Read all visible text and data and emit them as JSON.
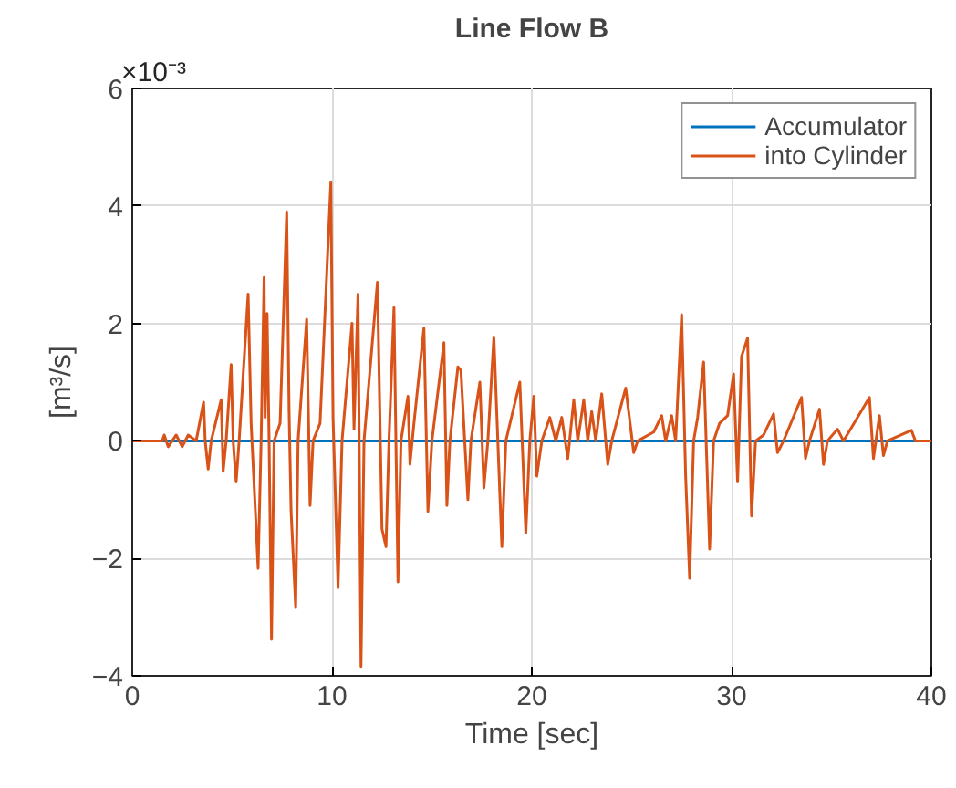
{
  "chart_data": {
    "type": "line",
    "title": "Line Flow B",
    "xlabel": "Time [sec]",
    "ylabel": "[m³/s]",
    "annotations": [
      "×10⁻³"
    ],
    "xlim": [
      0,
      40
    ],
    "xticks": [
      0,
      10,
      20,
      30,
      40
    ],
    "ylim": [
      -4,
      6
    ],
    "yticks": [
      -4,
      -2,
      0,
      2,
      4,
      6
    ],
    "grid": true,
    "legend": "top right",
    "line_style": "solid",
    "series": [
      {
        "name": "Accumulator",
        "color": "#0072bd",
        "x": [
          0,
          40
        ],
        "values": [
          0,
          0
        ]
      },
      {
        "name": "into Cylinder",
        "color": "#d95319",
        "x": [
          0,
          1.5,
          1.6,
          1.8,
          2.2,
          2.5,
          2.8,
          3.2,
          3.57,
          3.65,
          3.8,
          3.95,
          4.45,
          4.55,
          4.7,
          4.95,
          5.05,
          5.2,
          5.35,
          5.8,
          5.95,
          6.3,
          6.45,
          6.6,
          6.65,
          6.75,
          6.85,
          6.97,
          7.1,
          7.4,
          7.73,
          7.85,
          7.95,
          8.18,
          8.3,
          8.73,
          8.9,
          9.05,
          9.4,
          9.94,
          10.05,
          10.3,
          10.5,
          11.0,
          11.1,
          11.3,
          11.45,
          11.6,
          12.27,
          12.5,
          12.7,
          12.85,
          13.1,
          13.3,
          13.45,
          13.8,
          13.9,
          14.1,
          14.6,
          14.8,
          15.0,
          15.6,
          15.75,
          15.9,
          16.3,
          16.45,
          16.8,
          16.95,
          17.4,
          17.6,
          17.8,
          18.1,
          18.5,
          18.7,
          19.4,
          19.7,
          19.9,
          20.1,
          20.25,
          20.5,
          20.9,
          21.2,
          21.5,
          21.8,
          22.1,
          22.3,
          22.6,
          22.8,
          23.0,
          23.2,
          23.5,
          23.8,
          24.0,
          24.7,
          25.1,
          25.3,
          26.1,
          26.5,
          26.7,
          27.0,
          27.2,
          27.5,
          27.7,
          27.9,
          28.1,
          28.3,
          28.6,
          28.9,
          29.1,
          29.4,
          29.8,
          30.1,
          30.3,
          30.5,
          30.8,
          31.0,
          31.2,
          31.6,
          32.1,
          32.3,
          32.6,
          33.5,
          33.7,
          33.9,
          34.4,
          34.6,
          34.8,
          35.3,
          35.6,
          36.9,
          37.1,
          37.4,
          37.6,
          37.8,
          39.0,
          39.2,
          40
        ],
        "values": [
          0,
          0,
          0.1,
          -0.1,
          0.1,
          -0.1,
          0.1,
          0,
          0.66,
          0,
          -0.48,
          0,
          0.7,
          -0.52,
          0,
          1.3,
          0,
          -0.7,
          0,
          2.5,
          0.3,
          -2.17,
          0,
          2.78,
          0.4,
          2.17,
          0,
          -3.38,
          0,
          0.3,
          3.9,
          0.5,
          -1.2,
          -2.84,
          0,
          2.07,
          -1.1,
          0,
          0.3,
          4.4,
          0.4,
          -2.5,
          0,
          2.0,
          0.2,
          2.5,
          -3.84,
          0,
          2.7,
          -1.5,
          -1.8,
          0,
          2.27,
          -2.4,
          0,
          0.76,
          -0.4,
          0.3,
          1.92,
          -1.2,
          0,
          1.67,
          -1.1,
          0,
          1.26,
          1.2,
          -1.0,
          0,
          1.0,
          -0.8,
          0,
          1.77,
          -1.8,
          0,
          1.0,
          -1.57,
          0,
          0.76,
          -0.6,
          0,
          0.4,
          0,
          0.4,
          -0.3,
          0.7,
          0,
          0.7,
          0,
          0.5,
          0,
          0.8,
          -0.4,
          0,
          0.9,
          -0.2,
          0,
          0.15,
          0.43,
          0,
          0.43,
          0,
          2.15,
          -0.6,
          -2.34,
          0,
          0.4,
          1.34,
          -1.84,
          0,
          0.3,
          0.43,
          1.14,
          -0.7,
          1.44,
          1.75,
          -1.28,
          0,
          0.1,
          0.46,
          -0.2,
          0,
          0.74,
          -0.3,
          0,
          0.54,
          -0.4,
          0,
          0.2,
          0,
          0.74,
          -0.3,
          0.43,
          -0.25,
          0,
          0.18,
          0,
          0
        ]
      }
    ]
  }
}
